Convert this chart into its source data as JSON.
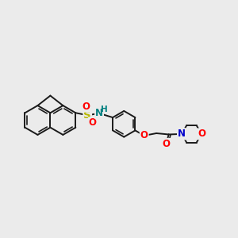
{
  "background_color": "#ebebeb",
  "bond_color": "#1a1a1a",
  "bond_width": 1.4,
  "S_color": "#b8b800",
  "N_color": "#008080",
  "O_color": "#ff0000",
  "N_morph_color": "#0000cc",
  "H_color": "#008080",
  "font_size": 8.5,
  "xlim": [
    0,
    10
  ],
  "ylim": [
    1,
    6
  ]
}
